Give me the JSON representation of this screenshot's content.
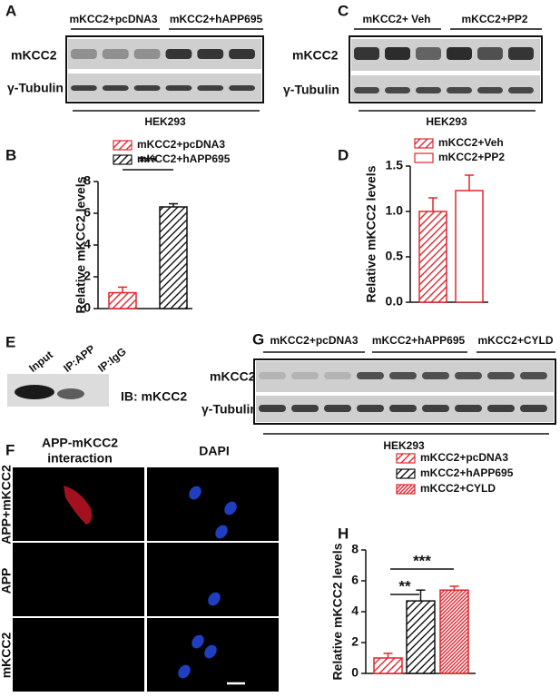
{
  "blots": {
    "A": {
      "letter": "A",
      "groups": [
        "mKCC2+pcDNA3",
        "mKCC2+hAPP695"
      ],
      "rows": [
        "mKCC2",
        "γ-Tubulin"
      ],
      "cell_line": "HEK293"
    },
    "C": {
      "letter": "C",
      "groups": [
        "mKCC2+ Veh",
        "mKCC2+PP2"
      ],
      "rows": [
        "mKCC2",
        "γ-Tubulin"
      ],
      "cell_line": "HEK293"
    },
    "E": {
      "letter": "E",
      "lanes": [
        "Input",
        "IP:APP",
        "IP:IgG"
      ],
      "probe": "IB: mKCC2"
    },
    "G": {
      "letter": "G",
      "groups": [
        "mKCC2+pcDNA3",
        "mKCC2+hAPP695",
        "mKCC2+CYLD"
      ],
      "rows": [
        "mKCC2",
        "γ-Tubulin"
      ],
      "cell_line": "HEK293"
    }
  },
  "images": {
    "letter": "F",
    "columns": [
      [
        "APP-mKCC2",
        "interaction"
      ],
      [
        "DAPI"
      ]
    ],
    "rows": [
      "APP+mKCC2",
      "APP",
      "mKCC2"
    ]
  },
  "chart_data": [
    {
      "type": "bar",
      "panel": "B",
      "y_label": "Relative mKCC2 levels",
      "ylim": [
        0,
        8
      ],
      "yticks": [
        0,
        2,
        4,
        6,
        8
      ],
      "significance": [
        "***"
      ],
      "series": [
        {
          "name": "mKCC2+pcDNA3",
          "color": "#e0262e",
          "pattern": "hatch",
          "values": [
            1.0
          ],
          "errors": [
            0.35
          ]
        },
        {
          "name": "mKCC2+hAPP695",
          "color": "#111111",
          "pattern": "hatch",
          "values": [
            6.4
          ],
          "errors": [
            0.2
          ]
        }
      ]
    },
    {
      "type": "bar",
      "panel": "D",
      "y_label": "Relative mKCC2 levels",
      "ylim": [
        0,
        1.5
      ],
      "yticks": [
        {
          "value": 0,
          "label": "0.0"
        },
        {
          "value": 0.5,
          "label": "0.5"
        },
        {
          "value": 1,
          "label": "1.0"
        },
        {
          "value": 1.5,
          "label": "1.5"
        }
      ],
      "significance": [],
      "series": [
        {
          "name": "mKCC2+Veh",
          "color": "#e0262e",
          "pattern": "hatch",
          "values": [
            1.0
          ],
          "errors": [
            0.15
          ]
        },
        {
          "name": "mKCC2+PP2",
          "color": "#e0262e",
          "pattern": "open",
          "values": [
            1.23
          ],
          "errors": [
            0.17
          ]
        }
      ]
    },
    {
      "type": "bar",
      "panel": "H",
      "y_label": "Relative mKCC2 levels",
      "ylim": [
        0,
        8
      ],
      "yticks": [
        0,
        2,
        4,
        6,
        8
      ],
      "significance": [
        "**",
        "***"
      ],
      "series": [
        {
          "name": "mKCC2+pcDNA3",
          "color": "#e0262e",
          "pattern": "hatch",
          "values": [
            1.0
          ],
          "errors": [
            0.3
          ]
        },
        {
          "name": "mKCC2+hAPP695",
          "color": "#111111",
          "pattern": "hatch",
          "values": [
            4.7
          ],
          "errors": [
            0.7
          ]
        },
        {
          "name": "mKCC2+CYLD",
          "color": "#e0262e",
          "pattern": "dense-hatch",
          "values": [
            5.4
          ],
          "errors": [
            0.25
          ]
        }
      ]
    }
  ]
}
